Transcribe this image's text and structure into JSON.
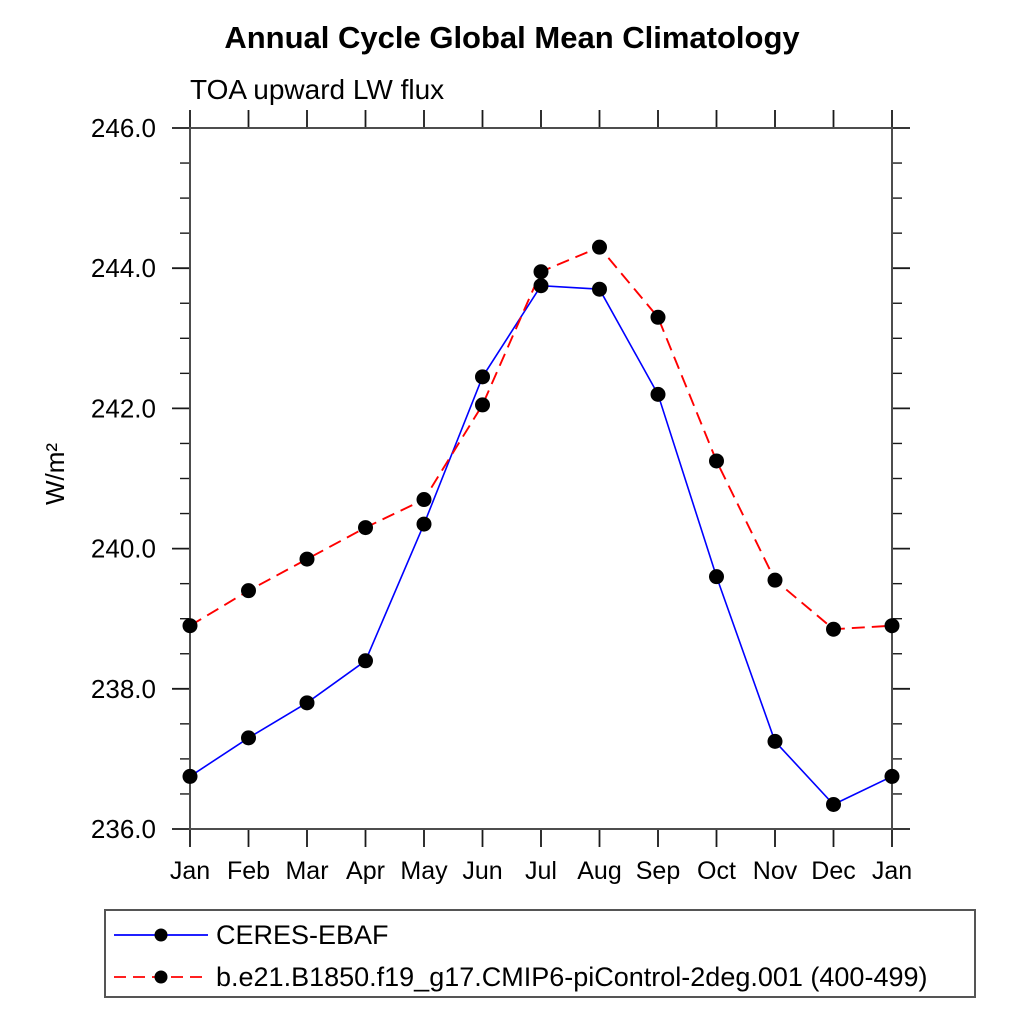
{
  "chart_data": {
    "type": "line",
    "title": "Annual Cycle Global Mean Climatology",
    "subtitle": "TOA upward LW flux",
    "ylabel": "W/m²",
    "x_categories": [
      "Jan",
      "Feb",
      "Mar",
      "Apr",
      "May",
      "Jun",
      "Jul",
      "Aug",
      "Sep",
      "Oct",
      "Nov",
      "Dec",
      "Jan"
    ],
    "ylim": [
      236.0,
      246.0
    ],
    "ytick_labels": [
      "236.0",
      "238.0",
      "240.0",
      "242.0",
      "244.0",
      "246.0"
    ],
    "y_minor_step": 0.5,
    "grid": false,
    "legend_position": "bottom-left-box",
    "series": [
      {
        "name": "CERES-EBAF",
        "color": "#0000ff",
        "line_style": "solid",
        "marker": "circle",
        "marker_color": "#000000",
        "values": [
          236.75,
          237.3,
          237.8,
          238.4,
          240.35,
          242.45,
          243.75,
          243.7,
          242.2,
          239.6,
          237.25,
          236.35,
          236.75
        ]
      },
      {
        "name": "b.e21.B1850.f19_g17.CMIP6-piControl-2deg.001 (400-499)",
        "color": "#ff0000",
        "line_style": "dashed",
        "marker": "circle",
        "marker_color": "#000000",
        "values": [
          238.9,
          239.4,
          239.85,
          240.3,
          240.7,
          242.05,
          243.95,
          244.3,
          243.3,
          241.25,
          239.55,
          238.85,
          238.9
        ]
      }
    ]
  },
  "colors": {
    "background": "#ffffff",
    "frame": "#4d4d4d",
    "tick": "#1a1a1a",
    "text": "#000000"
  }
}
